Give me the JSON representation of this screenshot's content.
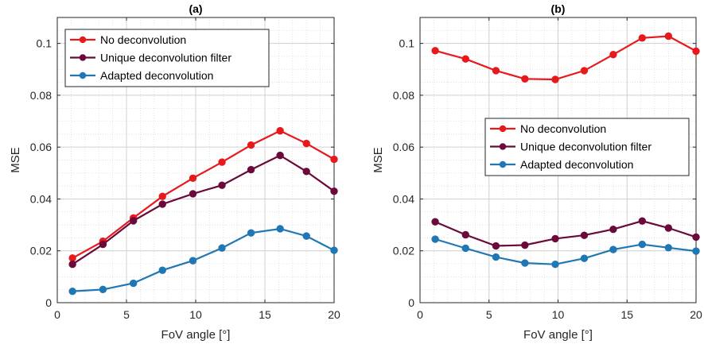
{
  "chart_data": [
    {
      "type": "line",
      "title": "(a)",
      "xlabel": "FoV angle [°]",
      "ylabel": "MSE",
      "xlim": [
        0,
        20
      ],
      "ylim": [
        0,
        0.11
      ],
      "xticks": [
        "0",
        "5",
        "10",
        "15",
        "20"
      ],
      "yticks": [
        "0",
        "0.02",
        "0.04",
        "0.06",
        "0.08",
        "0.1"
      ],
      "grid": true,
      "minor_grid": true,
      "legend_position": "top-left",
      "x": [
        1.1,
        3.3,
        5.5,
        7.6,
        9.8,
        11.9,
        14.0,
        16.1,
        18.0,
        20.0
      ],
      "series": [
        {
          "name": "No deconvolution",
          "color": "#e8191c",
          "values": [
            0.0172,
            0.0237,
            0.0327,
            0.041,
            0.048,
            0.0542,
            0.0608,
            0.0663,
            0.0614,
            0.0553
          ]
        },
        {
          "name": "Unique deconvolution filter",
          "color": "#6b0a3a",
          "values": [
            0.0148,
            0.0225,
            0.0316,
            0.038,
            0.042,
            0.0453,
            0.0513,
            0.0568,
            0.0506,
            0.043
          ]
        },
        {
          "name": "Adapted deconvolution",
          "color": "#1f77b4",
          "values": [
            0.0044,
            0.0051,
            0.0075,
            0.0125,
            0.0162,
            0.0211,
            0.0269,
            0.0285,
            0.0257,
            0.0202
          ]
        }
      ]
    },
    {
      "type": "line",
      "title": "(b)",
      "xlabel": "FoV angle [°]",
      "ylabel": "MSE",
      "xlim": [
        0,
        20
      ],
      "ylim": [
        0,
        0.11
      ],
      "xticks": [
        "0",
        "5",
        "10",
        "15",
        "20"
      ],
      "yticks": [
        "0",
        "0.02",
        "0.04",
        "0.06",
        "0.08",
        "0.1"
      ],
      "grid": true,
      "minor_grid": true,
      "legend_position": "center-right",
      "x": [
        1.1,
        3.3,
        5.5,
        7.6,
        9.8,
        11.9,
        14.0,
        16.1,
        18.0,
        20.0
      ],
      "series": [
        {
          "name": "No deconvolution",
          "color": "#e8191c",
          "values": [
            0.0972,
            0.094,
            0.0895,
            0.0863,
            0.0861,
            0.0895,
            0.0957,
            0.1021,
            0.1028,
            0.097
          ]
        },
        {
          "name": "Unique deconvolution filter",
          "color": "#6b0a3a",
          "values": [
            0.0312,
            0.0262,
            0.0219,
            0.0222,
            0.0247,
            0.026,
            0.0283,
            0.0315,
            0.0288,
            0.0253
          ]
        },
        {
          "name": "Adapted deconvolution",
          "color": "#1f77b4",
          "values": [
            0.0245,
            0.021,
            0.0176,
            0.0153,
            0.0148,
            0.0171,
            0.0205,
            0.0225,
            0.0212,
            0.0199
          ]
        }
      ]
    }
  ]
}
